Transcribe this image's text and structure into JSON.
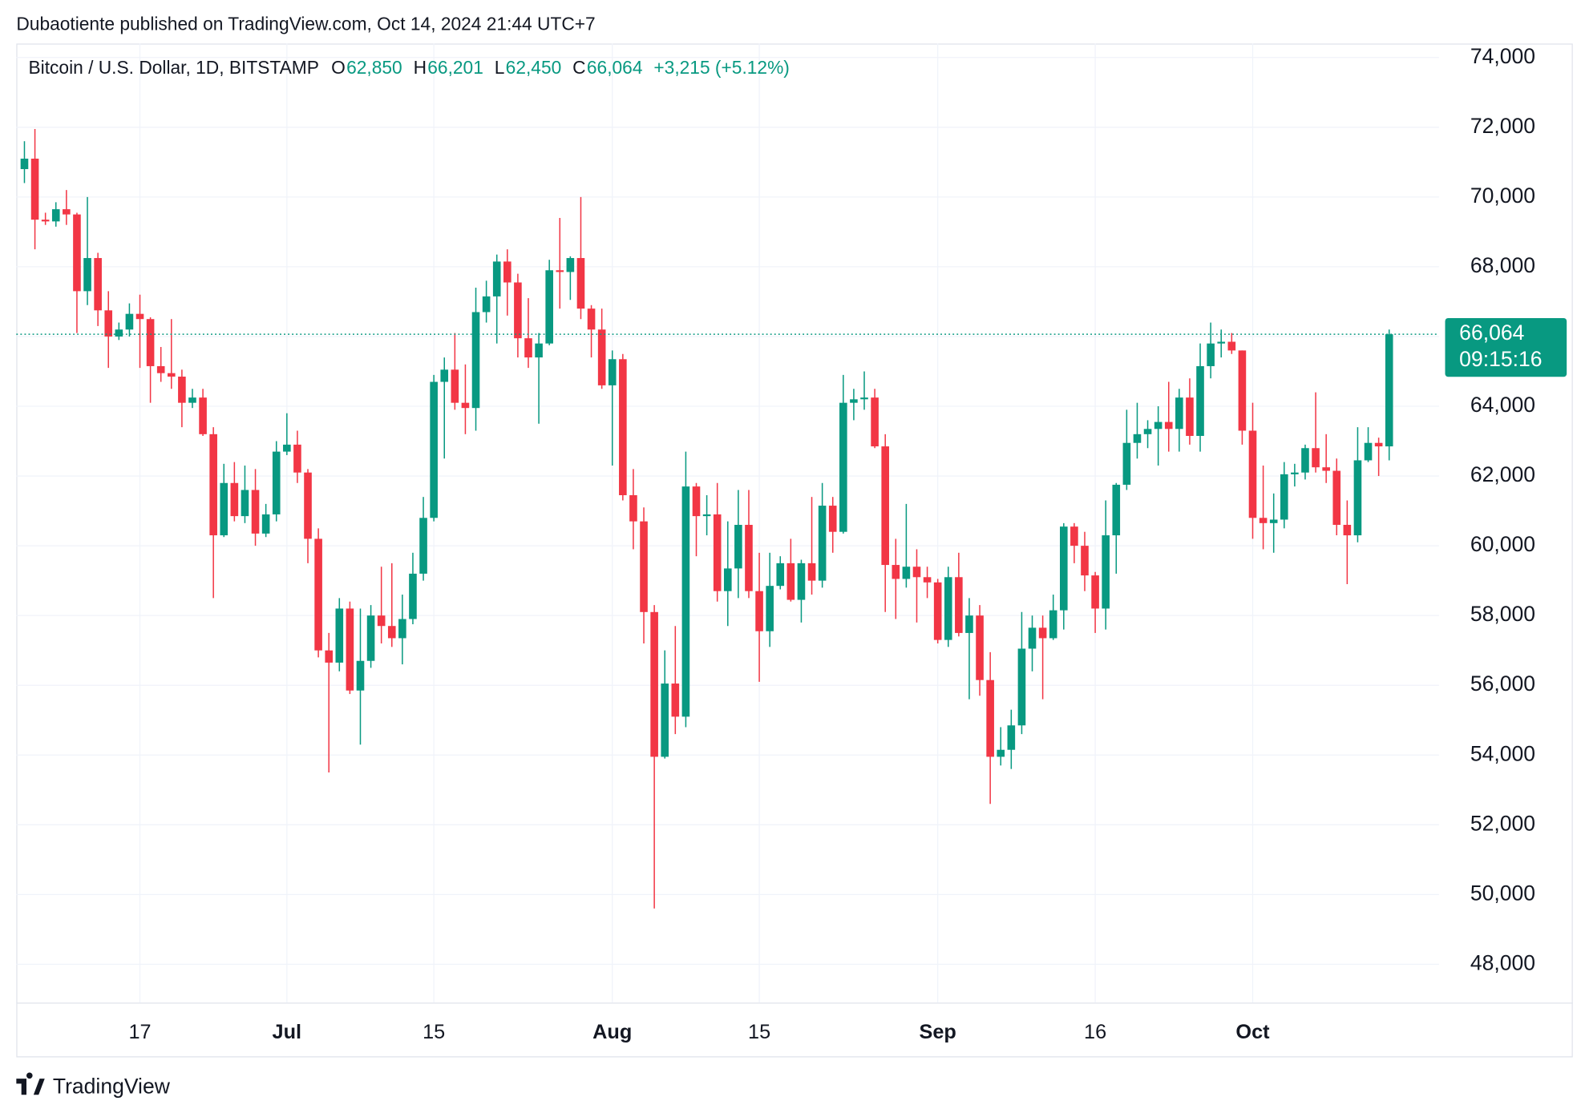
{
  "header": "Dubaotiente published on TradingView.com, Oct 14, 2024 21:44 UTC+7",
  "footer": "TradingView",
  "chart_data": {
    "type": "candlestick",
    "legend": {
      "symbol": "Bitcoin / U.S. Dollar, 1D, BITSTAMP",
      "items": [
        {
          "key": "O",
          "text": "62,850"
        },
        {
          "key": "H",
          "text": "66,201"
        },
        {
          "key": "L",
          "text": "62,450"
        },
        {
          "key": "C",
          "text": "66,064"
        }
      ],
      "change": "+3,215 (+5.12%)"
    },
    "price_label": "66,064",
    "countdown": "09:15:16",
    "up_color": "#089981",
    "down_color": "#f23645",
    "grid": true,
    "ylim": [
      46900,
      74400
    ],
    "yticks": [
      {
        "value": 48000,
        "label": "48,000"
      },
      {
        "value": 50000,
        "label": "50,000"
      },
      {
        "value": 52000,
        "label": "52,000"
      },
      {
        "value": 54000,
        "label": "54,000"
      },
      {
        "value": 56000,
        "label": "56,000"
      },
      {
        "value": 58000,
        "label": "58,000"
      },
      {
        "value": 60000,
        "label": "60,000"
      },
      {
        "value": 62000,
        "label": "62,000"
      },
      {
        "value": 64000,
        "label": "64,000"
      },
      {
        "value": 66000,
        "label": "66,000"
      },
      {
        "value": 68000,
        "label": "68,000"
      },
      {
        "value": 70000,
        "label": "70,000"
      },
      {
        "value": 72000,
        "label": "72,000"
      },
      {
        "value": 74000,
        "label": "74,000"
      }
    ],
    "xticks": [
      {
        "value": "Jun 17",
        "label": "17"
      },
      {
        "value": "Jul 1",
        "label": "Jul"
      },
      {
        "value": "Jul 15",
        "label": "15"
      },
      {
        "value": "Aug 1",
        "label": "Aug"
      },
      {
        "value": "Aug 15",
        "label": "15"
      },
      {
        "value": "Sep 1",
        "label": "Sep"
      },
      {
        "value": "Sep 16",
        "label": "16"
      },
      {
        "value": "Oct 1",
        "label": "Oct"
      }
    ],
    "candles": [
      {
        "date": "Jun 6",
        "open": 70800,
        "high": 71600,
        "low": 70400,
        "close": 71100
      },
      {
        "date": "Jun 7",
        "open": 71100,
        "high": 71950,
        "low": 68500,
        "close": 69350
      },
      {
        "date": "Jun 8",
        "open": 69350,
        "high": 69550,
        "low": 69200,
        "close": 69300
      },
      {
        "date": "Jun 9",
        "open": 69300,
        "high": 69850,
        "low": 69150,
        "close": 69650
      },
      {
        "date": "Jun 10",
        "open": 69650,
        "high": 70200,
        "low": 69200,
        "close": 69500
      },
      {
        "date": "Jun 11",
        "open": 69500,
        "high": 69550,
        "low": 66100,
        "close": 67300
      },
      {
        "date": "Jun 12",
        "open": 67300,
        "high": 70000,
        "low": 66900,
        "close": 68250
      },
      {
        "date": "Jun 13",
        "open": 68250,
        "high": 68400,
        "low": 66300,
        "close": 66750
      },
      {
        "date": "Jun 14",
        "open": 66750,
        "high": 67300,
        "low": 65100,
        "close": 66000
      },
      {
        "date": "Jun 15",
        "open": 66000,
        "high": 66400,
        "low": 65900,
        "close": 66200
      },
      {
        "date": "Jun 16",
        "open": 66200,
        "high": 66950,
        "low": 66000,
        "close": 66650
      },
      {
        "date": "Jun 17",
        "open": 66650,
        "high": 67200,
        "low": 65100,
        "close": 66500
      },
      {
        "date": "Jun 18",
        "open": 66500,
        "high": 66550,
        "low": 64100,
        "close": 65150
      },
      {
        "date": "Jun 19",
        "open": 65150,
        "high": 65700,
        "low": 64700,
        "close": 64950
      },
      {
        "date": "Jun 20",
        "open": 64950,
        "high": 66500,
        "low": 64500,
        "close": 64850
      },
      {
        "date": "Jun 21",
        "open": 64850,
        "high": 65050,
        "low": 63400,
        "close": 64100
      },
      {
        "date": "Jun 22",
        "open": 64100,
        "high": 64500,
        "low": 63950,
        "close": 64250
      },
      {
        "date": "Jun 23",
        "open": 64250,
        "high": 64500,
        "low": 63150,
        "close": 63200
      },
      {
        "date": "Jun 24",
        "open": 63200,
        "high": 63400,
        "low": 58500,
        "close": 60300
      },
      {
        "date": "Jun 25",
        "open": 60300,
        "high": 62350,
        "low": 60250,
        "close": 61800
      },
      {
        "date": "Jun 26",
        "open": 61800,
        "high": 62400,
        "low": 60700,
        "close": 60850
      },
      {
        "date": "Jun 27",
        "open": 60850,
        "high": 62300,
        "low": 60650,
        "close": 61600
      },
      {
        "date": "Jun 28",
        "open": 61600,
        "high": 62200,
        "low": 60000,
        "close": 60350
      },
      {
        "date": "Jun 29",
        "open": 60350,
        "high": 61200,
        "low": 60250,
        "close": 60900
      },
      {
        "date": "Jun 30",
        "open": 60900,
        "high": 63000,
        "low": 60700,
        "close": 62700
      },
      {
        "date": "Jul 1",
        "open": 62700,
        "high": 63800,
        "low": 62600,
        "close": 62900
      },
      {
        "date": "Jul 2",
        "open": 62900,
        "high": 63300,
        "low": 61800,
        "close": 62100
      },
      {
        "date": "Jul 3",
        "open": 62100,
        "high": 62200,
        "low": 59500,
        "close": 60200
      },
      {
        "date": "Jul 4",
        "open": 60200,
        "high": 60500,
        "low": 56800,
        "close": 57000
      },
      {
        "date": "Jul 5",
        "open": 57000,
        "high": 57500,
        "low": 53500,
        "close": 56650
      },
      {
        "date": "Jul 6",
        "open": 56650,
        "high": 58500,
        "low": 56400,
        "close": 58200
      },
      {
        "date": "Jul 7",
        "open": 58200,
        "high": 58400,
        "low": 55750,
        "close": 55850
      },
      {
        "date": "Jul 8",
        "open": 55850,
        "high": 58200,
        "low": 54300,
        "close": 56700
      },
      {
        "date": "Jul 9",
        "open": 56700,
        "high": 58300,
        "low": 56500,
        "close": 58000
      },
      {
        "date": "Jul 10",
        "open": 58000,
        "high": 59400,
        "low": 57200,
        "close": 57700
      },
      {
        "date": "Jul 11",
        "open": 57700,
        "high": 59500,
        "low": 57100,
        "close": 57350
      },
      {
        "date": "Jul 12",
        "open": 57350,
        "high": 58600,
        "low": 56600,
        "close": 57900
      },
      {
        "date": "Jul 13",
        "open": 57900,
        "high": 59800,
        "low": 57750,
        "close": 59200
      },
      {
        "date": "Jul 14",
        "open": 59200,
        "high": 61400,
        "low": 59000,
        "close": 60800
      },
      {
        "date": "Jul 15",
        "open": 60800,
        "high": 64900,
        "low": 60700,
        "close": 64700
      },
      {
        "date": "Jul 16",
        "open": 64700,
        "high": 65400,
        "low": 62500,
        "close": 65050
      },
      {
        "date": "Jul 17",
        "open": 65050,
        "high": 66100,
        "low": 63900,
        "close": 64100
      },
      {
        "date": "Jul 18",
        "open": 64100,
        "high": 65200,
        "low": 63200,
        "close": 63950
      },
      {
        "date": "Jul 19",
        "open": 63950,
        "high": 67400,
        "low": 63300,
        "close": 66700
      },
      {
        "date": "Jul 20",
        "open": 66700,
        "high": 67600,
        "low": 66400,
        "close": 67150
      },
      {
        "date": "Jul 21",
        "open": 67150,
        "high": 68350,
        "low": 65800,
        "close": 68150
      },
      {
        "date": "Jul 22",
        "open": 68150,
        "high": 68500,
        "low": 66600,
        "close": 67550
      },
      {
        "date": "Jul 23",
        "open": 67550,
        "high": 67800,
        "low": 65400,
        "close": 65950
      },
      {
        "date": "Jul 24",
        "open": 65950,
        "high": 67100,
        "low": 65100,
        "close": 65400
      },
      {
        "date": "Jul 25",
        "open": 65400,
        "high": 66100,
        "low": 63500,
        "close": 65800
      },
      {
        "date": "Jul 26",
        "open": 65800,
        "high": 68200,
        "low": 65750,
        "close": 67900
      },
      {
        "date": "Jul 27",
        "open": 67900,
        "high": 69400,
        "low": 66800,
        "close": 67850
      },
      {
        "date": "Jul 28",
        "open": 67850,
        "high": 68300,
        "low": 67050,
        "close": 68250
      },
      {
        "date": "Jul 29",
        "open": 68250,
        "high": 70000,
        "low": 66500,
        "close": 66800
      },
      {
        "date": "Jul 30",
        "open": 66800,
        "high": 66900,
        "low": 65400,
        "close": 66200
      },
      {
        "date": "Jul 31",
        "open": 66200,
        "high": 66800,
        "low": 64500,
        "close": 64600
      },
      {
        "date": "Aug 1",
        "open": 64600,
        "high": 65600,
        "low": 62300,
        "close": 65350
      },
      {
        "date": "Aug 2",
        "open": 65350,
        "high": 65500,
        "low": 61300,
        "close": 61450
      },
      {
        "date": "Aug 3",
        "open": 61450,
        "high": 62200,
        "low": 59900,
        "close": 60700
      },
      {
        "date": "Aug 4",
        "open": 60700,
        "high": 61100,
        "low": 57200,
        "close": 58100
      },
      {
        "date": "Aug 5",
        "open": 58100,
        "high": 58300,
        "low": 49600,
        "close": 53950
      },
      {
        "date": "Aug 6",
        "open": 53950,
        "high": 57000,
        "low": 53900,
        "close": 56050
      },
      {
        "date": "Aug 7",
        "open": 56050,
        "high": 57700,
        "low": 54600,
        "close": 55100
      },
      {
        "date": "Aug 8",
        "open": 55100,
        "high": 62700,
        "low": 54800,
        "close": 61700
      },
      {
        "date": "Aug 9",
        "open": 61700,
        "high": 61800,
        "low": 59700,
        "close": 60850
      },
      {
        "date": "Aug 10",
        "open": 60850,
        "high": 61450,
        "low": 60300,
        "close": 60900
      },
      {
        "date": "Aug 11",
        "open": 60900,
        "high": 61800,
        "low": 58400,
        "close": 58700
      },
      {
        "date": "Aug 12",
        "open": 58700,
        "high": 60700,
        "low": 57700,
        "close": 59350
      },
      {
        "date": "Aug 13",
        "open": 59350,
        "high": 61600,
        "low": 58500,
        "close": 60600
      },
      {
        "date": "Aug 14",
        "open": 60600,
        "high": 61600,
        "low": 58500,
        "close": 58700
      },
      {
        "date": "Aug 15",
        "open": 58700,
        "high": 59800,
        "low": 56100,
        "close": 57550
      },
      {
        "date": "Aug 16",
        "open": 57550,
        "high": 59800,
        "low": 57100,
        "close": 58850
      },
      {
        "date": "Aug 17",
        "open": 58850,
        "high": 59700,
        "low": 58750,
        "close": 59500
      },
      {
        "date": "Aug 18",
        "open": 59500,
        "high": 60200,
        "low": 58400,
        "close": 58450
      },
      {
        "date": "Aug 19",
        "open": 58450,
        "high": 59600,
        "low": 57800,
        "close": 59500
      },
      {
        "date": "Aug 20",
        "open": 59500,
        "high": 61400,
        "low": 58600,
        "close": 59000
      },
      {
        "date": "Aug 21",
        "open": 59000,
        "high": 61800,
        "low": 58800,
        "close": 61150
      },
      {
        "date": "Aug 22",
        "open": 61150,
        "high": 61400,
        "low": 59800,
        "close": 60400
      },
      {
        "date": "Aug 23",
        "open": 60400,
        "high": 64900,
        "low": 60350,
        "close": 64100
      },
      {
        "date": "Aug 24",
        "open": 64100,
        "high": 64500,
        "low": 63600,
        "close": 64200
      },
      {
        "date": "Aug 25",
        "open": 64200,
        "high": 65000,
        "low": 63900,
        "close": 64250
      },
      {
        "date": "Aug 26",
        "open": 64250,
        "high": 64500,
        "low": 62800,
        "close": 62850
      },
      {
        "date": "Aug 27",
        "open": 62850,
        "high": 63200,
        "low": 58100,
        "close": 59450
      },
      {
        "date": "Aug 28",
        "open": 59450,
        "high": 60200,
        "low": 57900,
        "close": 59050
      },
      {
        "date": "Aug 29",
        "open": 59050,
        "high": 61200,
        "low": 58800,
        "close": 59400
      },
      {
        "date": "Aug 30",
        "open": 59400,
        "high": 59900,
        "low": 57800,
        "close": 59100
      },
      {
        "date": "Aug 31",
        "open": 59100,
        "high": 59400,
        "low": 58500,
        "close": 58950
      },
      {
        "date": "Sep 1",
        "open": 58950,
        "high": 59050,
        "low": 57200,
        "close": 57300
      },
      {
        "date": "Sep 2",
        "open": 57300,
        "high": 59400,
        "low": 57100,
        "close": 59100
      },
      {
        "date": "Sep 3",
        "open": 59100,
        "high": 59800,
        "low": 57400,
        "close": 57500
      },
      {
        "date": "Sep 4",
        "open": 57500,
        "high": 58500,
        "low": 55600,
        "close": 58000
      },
      {
        "date": "Sep 5",
        "open": 58000,
        "high": 58300,
        "low": 55700,
        "close": 56150
      },
      {
        "date": "Sep 6",
        "open": 56150,
        "high": 56950,
        "low": 52600,
        "close": 53950
      },
      {
        "date": "Sep 7",
        "open": 53950,
        "high": 54800,
        "low": 53700,
        "close": 54150
      },
      {
        "date": "Sep 8",
        "open": 54150,
        "high": 55300,
        "low": 53600,
        "close": 54850
      },
      {
        "date": "Sep 9",
        "open": 54850,
        "high": 58100,
        "low": 54600,
        "close": 57050
      },
      {
        "date": "Sep 10",
        "open": 57050,
        "high": 58000,
        "low": 56400,
        "close": 57650
      },
      {
        "date": "Sep 11",
        "open": 57650,
        "high": 58000,
        "low": 55600,
        "close": 57350
      },
      {
        "date": "Sep 12",
        "open": 57350,
        "high": 58600,
        "low": 57300,
        "close": 58150
      },
      {
        "date": "Sep 13",
        "open": 58150,
        "high": 60650,
        "low": 57600,
        "close": 60550
      },
      {
        "date": "Sep 14",
        "open": 60550,
        "high": 60650,
        "low": 59500,
        "close": 60000
      },
      {
        "date": "Sep 15",
        "open": 60000,
        "high": 60400,
        "low": 58700,
        "close": 59150
      },
      {
        "date": "Sep 16",
        "open": 59150,
        "high": 59250,
        "low": 57500,
        "close": 58200
      },
      {
        "date": "Sep 17",
        "open": 58200,
        "high": 61300,
        "low": 57600,
        "close": 60300
      },
      {
        "date": "Sep 18",
        "open": 60300,
        "high": 61800,
        "low": 59200,
        "close": 61750
      },
      {
        "date": "Sep 19",
        "open": 61750,
        "high": 63900,
        "low": 61600,
        "close": 62950
      },
      {
        "date": "Sep 20",
        "open": 62950,
        "high": 64100,
        "low": 62500,
        "close": 63200
      },
      {
        "date": "Sep 21",
        "open": 63200,
        "high": 63600,
        "low": 62800,
        "close": 63350
      },
      {
        "date": "Sep 22",
        "open": 63350,
        "high": 64000,
        "low": 62300,
        "close": 63550
      },
      {
        "date": "Sep 23",
        "open": 63550,
        "high": 64700,
        "low": 62700,
        "close": 63350
      },
      {
        "date": "Sep 24",
        "open": 63350,
        "high": 64500,
        "low": 62700,
        "close": 64250
      },
      {
        "date": "Sep 25",
        "open": 64250,
        "high": 64800,
        "low": 62900,
        "close": 63150
      },
      {
        "date": "Sep 26",
        "open": 63150,
        "high": 65800,
        "low": 62700,
        "close": 65150
      },
      {
        "date": "Sep 27",
        "open": 65150,
        "high": 66400,
        "low": 64800,
        "close": 65800
      },
      {
        "date": "Sep 28",
        "open": 65800,
        "high": 66200,
        "low": 65400,
        "close": 65850
      },
      {
        "date": "Sep 29",
        "open": 65850,
        "high": 66100,
        "low": 65500,
        "close": 65600
      },
      {
        "date": "Sep 30",
        "open": 65600,
        "high": 65600,
        "low": 62900,
        "close": 63300
      },
      {
        "date": "Oct 1",
        "open": 63300,
        "high": 64100,
        "low": 60200,
        "close": 60800
      },
      {
        "date": "Oct 2",
        "open": 60800,
        "high": 62300,
        "low": 59900,
        "close": 60650
      },
      {
        "date": "Oct 3",
        "open": 60650,
        "high": 61500,
        "low": 59800,
        "close": 60750
      },
      {
        "date": "Oct 4",
        "open": 60750,
        "high": 62400,
        "low": 60500,
        "close": 62050
      },
      {
        "date": "Oct 5",
        "open": 62050,
        "high": 62350,
        "low": 61700,
        "close": 62100
      },
      {
        "date": "Oct 6",
        "open": 62100,
        "high": 62900,
        "low": 61900,
        "close": 62800
      },
      {
        "date": "Oct 7",
        "open": 62800,
        "high": 64400,
        "low": 62100,
        "close": 62250
      },
      {
        "date": "Oct 8",
        "open": 62250,
        "high": 63200,
        "low": 61800,
        "close": 62150
      },
      {
        "date": "Oct 9",
        "open": 62150,
        "high": 62500,
        "low": 60300,
        "close": 60600
      },
      {
        "date": "Oct 10",
        "open": 60600,
        "high": 61300,
        "low": 58900,
        "close": 60300
      },
      {
        "date": "Oct 11",
        "open": 60300,
        "high": 63400,
        "low": 60100,
        "close": 62450
      },
      {
        "date": "Oct 12",
        "open": 62450,
        "high": 63400,
        "low": 62400,
        "close": 62950
      },
      {
        "date": "Oct 13",
        "open": 62950,
        "high": 63100,
        "low": 62000,
        "close": 62850
      },
      {
        "date": "Oct 14",
        "open": 62850,
        "high": 66201,
        "low": 62450,
        "close": 66064
      }
    ]
  }
}
